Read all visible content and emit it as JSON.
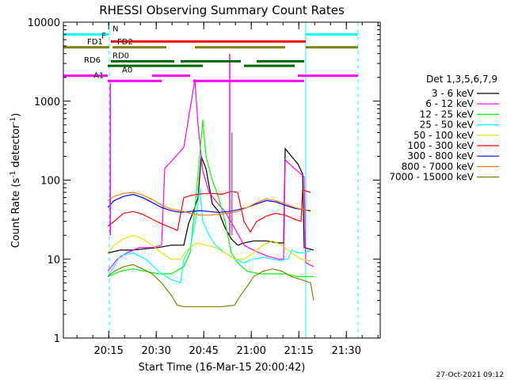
{
  "chart_data": {
    "type": "line",
    "title": "RHESSI Observing Summary Count Rates",
    "xlabel": "Start Time (16-Mar-15 20:00:42)",
    "ylabel_main": "Count Rate (s",
    "ylabel_sup1": "-1",
    "ylabel_mid": " detector",
    "ylabel_sup2": "-1",
    "ylabel_end": ")",
    "x_unit": "minutes after 20:00:42",
    "xlim": [
      0,
      100
    ],
    "ylim": [
      1,
      10000
    ],
    "yscale": "log",
    "x_ticks": [
      {
        "label": "20:15",
        "x": 14.3
      },
      {
        "label": "20:30",
        "x": 29.3
      },
      {
        "label": "20:45",
        "x": 44.3
      },
      {
        "label": "21:00",
        "x": 59.3
      },
      {
        "label": "21:15",
        "x": 74.3
      },
      {
        "label": "21:30",
        "x": 89.3
      }
    ],
    "y_ticks": [
      {
        "label": "1",
        "v": 1
      },
      {
        "label": "10",
        "v": 10
      },
      {
        "label": "100",
        "v": 100
      },
      {
        "label": "1000",
        "v": 1000
      },
      {
        "label": "10000",
        "v": 10000
      }
    ],
    "legend_title": "Det 1,3,5,6,7,9",
    "legend_position": "right",
    "footer": "27-Oct-2021 09:12",
    "series": [
      {
        "name": "3 - 6 keV",
        "color": "#000000",
        "points": [
          [
            14,
            12
          ],
          [
            18,
            13
          ],
          [
            22,
            13
          ],
          [
            26,
            13.5
          ],
          [
            30,
            14
          ],
          [
            34,
            15
          ],
          [
            38,
            15
          ],
          [
            39.5,
            28
          ],
          [
            41,
            40
          ],
          [
            42.5,
            60
          ],
          [
            43.5,
            200
          ],
          [
            45,
            140
          ],
          [
            47,
            50
          ],
          [
            49,
            40
          ],
          [
            51,
            25
          ],
          [
            53,
            18
          ],
          [
            55,
            15
          ],
          [
            57,
            16
          ],
          [
            60,
            17
          ],
          [
            64,
            17
          ],
          [
            68,
            16
          ],
          [
            69.5,
            16
          ],
          [
            70,
            250
          ],
          [
            72,
            200
          ],
          [
            74,
            160
          ],
          [
            75.5,
            120
          ],
          [
            76,
            14
          ],
          [
            79,
            13
          ]
        ]
      },
      {
        "name": "6 - 12 keV",
        "color": "#ff00ff",
        "points": [
          [
            14,
            7
          ],
          [
            17,
            10
          ],
          [
            20,
            12
          ],
          [
            24,
            14
          ],
          [
            28,
            14
          ],
          [
            31,
            15
          ],
          [
            32,
            140
          ],
          [
            35,
            190
          ],
          [
            38,
            260
          ],
          [
            40,
            800
          ],
          [
            41.5,
            1900
          ],
          [
            42.5,
            500
          ],
          [
            44,
            130
          ],
          [
            46,
            70
          ],
          [
            48,
            55
          ],
          [
            51,
            40
          ],
          [
            54,
            25
          ],
          [
            57,
            15
          ],
          [
            60,
            13
          ],
          [
            64,
            11
          ],
          [
            68,
            10
          ],
          [
            69.5,
            10
          ],
          [
            70,
            180
          ],
          [
            73,
            140
          ],
          [
            76,
            110
          ],
          [
            76.5,
            9
          ],
          [
            79,
            8
          ]
        ]
      },
      {
        "name": "12 - 25 keV",
        "color": "#00ff00",
        "points": [
          [
            14,
            6
          ],
          [
            18,
            7
          ],
          [
            22,
            7.5
          ],
          [
            26,
            7
          ],
          [
            30,
            6.5
          ],
          [
            34,
            6.5
          ],
          [
            38,
            8
          ],
          [
            40,
            12
          ],
          [
            42,
            70
          ],
          [
            44,
            580
          ],
          [
            45,
            200
          ],
          [
            47,
            100
          ],
          [
            49,
            60
          ],
          [
            51,
            30
          ],
          [
            53,
            12
          ],
          [
            55,
            9
          ],
          [
            58,
            7
          ],
          [
            62,
            6.5
          ],
          [
            66,
            6.5
          ],
          [
            70,
            6.5
          ],
          [
            74,
            6
          ],
          [
            79,
            6
          ]
        ]
      },
      {
        "name": "25 - 50 keV",
        "color": "#00ffff",
        "points": [
          [
            14,
            6
          ],
          [
            18,
            11
          ],
          [
            22,
            12
          ],
          [
            26,
            10
          ],
          [
            30,
            7
          ],
          [
            34,
            5.5
          ],
          [
            37,
            5
          ],
          [
            38,
            10
          ],
          [
            40,
            14
          ],
          [
            42,
            35
          ],
          [
            43,
            80
          ],
          [
            44,
            30
          ],
          [
            46,
            20
          ],
          [
            48,
            15
          ],
          [
            51,
            12
          ],
          [
            54,
            10
          ],
          [
            57,
            9
          ],
          [
            60,
            10
          ],
          [
            63,
            10.5
          ],
          [
            66,
            10
          ],
          [
            69,
            9.5
          ],
          [
            70,
            10
          ],
          [
            71,
            10
          ],
          [
            72,
            13
          ],
          [
            74,
            12
          ],
          [
            76,
            12
          ],
          [
            78,
            13
          ]
        ]
      },
      {
        "name": "50 - 100 keV",
        "color": "#e0e000",
        "points": [
          [
            14,
            12
          ],
          [
            16,
            15
          ],
          [
            19,
            18
          ],
          [
            22,
            20
          ],
          [
            25,
            18
          ],
          [
            28,
            15
          ],
          [
            31,
            12
          ],
          [
            34,
            10
          ],
          [
            37,
            10
          ],
          [
            39,
            13
          ],
          [
            42,
            16
          ],
          [
            45,
            15
          ],
          [
            48,
            14
          ],
          [
            51,
            12
          ],
          [
            54,
            10
          ],
          [
            57,
            10
          ],
          [
            60,
            12
          ],
          [
            63,
            15
          ],
          [
            66,
            17
          ],
          [
            69,
            15
          ],
          [
            72,
            12
          ],
          [
            75,
            10
          ],
          [
            78,
            9.5
          ]
        ]
      },
      {
        "name": "100 - 300 keV",
        "color": "#ff0000",
        "points": [
          [
            14,
            26
          ],
          [
            16,
            30
          ],
          [
            19,
            38
          ],
          [
            22,
            40
          ],
          [
            25,
            37
          ],
          [
            28,
            32
          ],
          [
            31,
            28
          ],
          [
            34,
            25
          ],
          [
            36,
            23
          ],
          [
            38,
            60
          ],
          [
            41,
            65
          ],
          [
            44,
            67
          ],
          [
            47,
            68
          ],
          [
            50,
            66
          ],
          [
            53,
            72
          ],
          [
            55,
            70
          ],
          [
            57,
            30
          ],
          [
            59,
            22
          ],
          [
            61,
            30
          ],
          [
            64,
            35
          ],
          [
            67,
            38
          ],
          [
            70,
            36
          ],
          [
            73,
            32
          ],
          [
            75,
            30
          ],
          [
            75.5,
            75
          ],
          [
            78,
            70
          ]
        ]
      },
      {
        "name": "300 - 800 keV",
        "color": "#0000ff",
        "points": [
          [
            14,
            45
          ],
          [
            16,
            55
          ],
          [
            19,
            62
          ],
          [
            22,
            66
          ],
          [
            25,
            60
          ],
          [
            28,
            52
          ],
          [
            31,
            45
          ],
          [
            34,
            41
          ],
          [
            37,
            39
          ],
          [
            40,
            40
          ],
          [
            43,
            41
          ],
          [
            46,
            40
          ],
          [
            49,
            39
          ],
          [
            52,
            40
          ],
          [
            55,
            42
          ],
          [
            58,
            45
          ],
          [
            61,
            50
          ],
          [
            64,
            55
          ],
          [
            67,
            53
          ],
          [
            70,
            48
          ],
          [
            73,
            44
          ],
          [
            76,
            42
          ],
          [
            78,
            41
          ]
        ]
      },
      {
        "name": "800 - 7000 keV",
        "color": "#ff8000",
        "points": [
          [
            14,
            55
          ],
          [
            16,
            62
          ],
          [
            19,
            68
          ],
          [
            22,
            70
          ],
          [
            25,
            65
          ],
          [
            28,
            57
          ],
          [
            31,
            48
          ],
          [
            34,
            43
          ],
          [
            37,
            41
          ],
          [
            40,
            38
          ],
          [
            43,
            36
          ],
          [
            46,
            36
          ],
          [
            49,
            37
          ],
          [
            52,
            38
          ],
          [
            55,
            40
          ],
          [
            58,
            45
          ],
          [
            61,
            52
          ],
          [
            64,
            58
          ],
          [
            67,
            55
          ],
          [
            70,
            50
          ],
          [
            73,
            45
          ],
          [
            76,
            42
          ],
          [
            78,
            40
          ]
        ]
      },
      {
        "name": "7000 - 15000 keV",
        "color": "#808000",
        "points": [
          [
            14,
            6
          ],
          [
            16,
            7
          ],
          [
            19,
            8
          ],
          [
            22,
            8.5
          ],
          [
            25,
            7.5
          ],
          [
            28,
            6.5
          ],
          [
            31,
            5
          ],
          [
            34,
            3.5
          ],
          [
            36,
            2.6
          ],
          [
            38,
            2.5
          ],
          [
            42,
            2.5
          ],
          [
            46,
            2.5
          ],
          [
            50,
            2.5
          ],
          [
            54,
            2.6
          ],
          [
            56,
            3.5
          ],
          [
            58,
            4.5
          ],
          [
            60,
            6
          ],
          [
            63,
            7
          ],
          [
            66,
            7.5
          ],
          [
            69,
            7
          ],
          [
            72,
            6
          ],
          [
            75,
            5.5
          ],
          [
            78,
            5
          ],
          [
            79,
            3
          ]
        ]
      }
    ],
    "mode_bars": [
      {
        "label": "N",
        "color": "#00ffff",
        "v": 7000,
        "segments": [
          [
            0,
            14.5
          ],
          [
            76.5,
            93
          ]
        ]
      },
      {
        "label": "F",
        "color": "#ff0000",
        "v": 5700,
        "segments": [
          [
            15,
            76.5
          ]
        ]
      },
      {
        "label": "FD1",
        "color": "#808000",
        "v": 4800,
        "segments": [
          [
            0,
            14.5
          ]
        ]
      },
      {
        "label": "FD2",
        "color": "#808000",
        "v": 4800,
        "segments": [
          [
            15.5,
            32.5
          ],
          [
            41.5,
            70
          ],
          [
            76.5,
            93
          ]
        ]
      },
      {
        "label": "RD0",
        "color": "#006400",
        "v": 3200,
        "segments": [
          [
            15,
            35
          ],
          [
            37,
            56
          ],
          [
            61,
            76
          ]
        ]
      },
      {
        "label": "RD6",
        "color": "#006400",
        "v": 2800,
        "segments": [
          [
            14,
            44
          ],
          [
            57,
            73
          ]
        ]
      },
      {
        "label": "A0",
        "color": "#ff00ff",
        "v": 2100,
        "segments": [
          [
            0,
            14
          ],
          [
            28,
            40
          ],
          [
            74,
            93
          ]
        ]
      },
      {
        "label": "A1",
        "color": "#ff00ff",
        "v": 1800,
        "segments": [
          [
            14,
            31
          ],
          [
            41,
            76
          ]
        ]
      }
    ],
    "spikes": [
      {
        "color": "#ff00ff",
        "x": 14.8,
        "v": 1700
      },
      {
        "color": "#ff00ff",
        "x": 52.5,
        "v": 4000
      },
      {
        "color": "#808080",
        "x": 53.2,
        "v": 400
      }
    ],
    "vlines": [
      {
        "color": "#00ffff",
        "x": 0,
        "dashed": false
      },
      {
        "color": "#00ffff",
        "x": 14.5,
        "dashed": true
      },
      {
        "color": "#00ffff",
        "x": 76.5,
        "dashed": false
      },
      {
        "color": "#00ffff",
        "x": 93,
        "dashed": true
      }
    ]
  }
}
